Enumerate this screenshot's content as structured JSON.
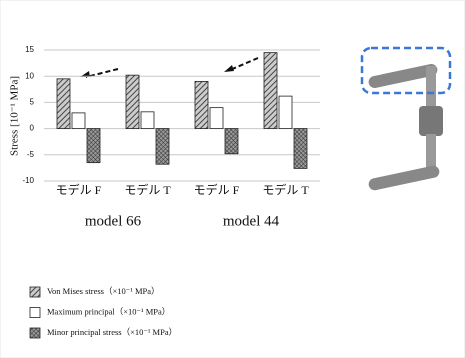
{
  "chart_data": {
    "type": "bar",
    "y_label": "Stress [10⁻¹ MPa]",
    "categories": [
      "モデル F",
      "モデル T",
      "モデル F",
      "モデル T"
    ],
    "groups": [
      "model 66",
      "model 44"
    ],
    "series": [
      {
        "name": "Von Mises stress（×10⁻¹ MPa）",
        "color": "#444444",
        "values": [
          9.5,
          10.2,
          9,
          14.5
        ]
      },
      {
        "name": "Maximum principal（×10⁻¹ MPa）",
        "color": "#ffffff",
        "values": [
          3,
          3.2,
          4,
          6.2
        ]
      },
      {
        "name": "Minor principal stress（×10⁻¹ MPa）",
        "color": "#333333",
        "values": [
          -6.5,
          -6.8,
          -4.8,
          -7.6
        ]
      }
    ],
    "ylim": [
      -10,
      15
    ],
    "yticks": [
      -10,
      -5,
      0,
      5,
      10,
      15
    ],
    "grid": true
  }
}
